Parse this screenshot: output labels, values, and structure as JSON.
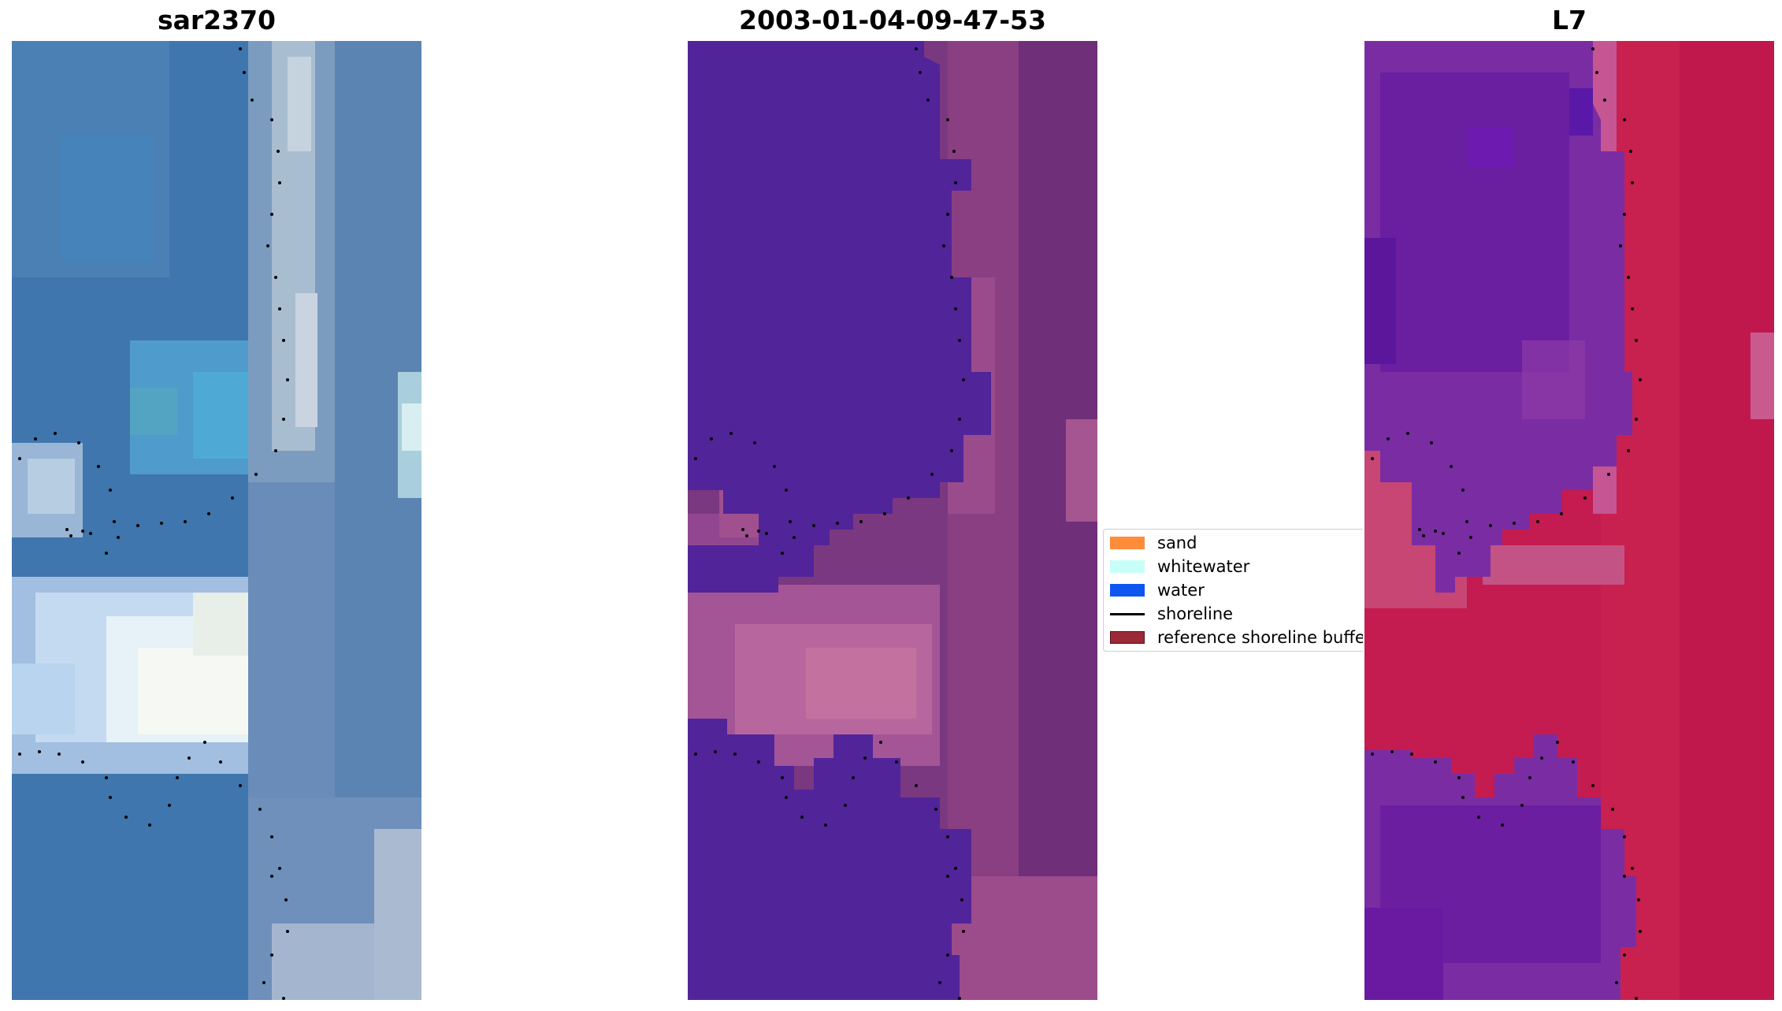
{
  "panels": {
    "rgb": {
      "title": "sar2370",
      "image": "RGB satellite image with dotted shoreline overlay"
    },
    "classified": {
      "title": "2003-01-04-09-47-53",
      "image": "classified image with dotted shoreline overlay"
    },
    "index": {
      "title": "L7",
      "image": "water index image with dotted shoreline overlay"
    }
  },
  "legend": {
    "items": [
      {
        "label": "sand",
        "color": "#ff8c3b",
        "kind": "patch"
      },
      {
        "label": "whitewater",
        "color": "#c8fff8",
        "kind": "patch"
      },
      {
        "label": "water",
        "color": "#0f56f0",
        "kind": "patch"
      },
      {
        "label": "shoreline",
        "color": "#000000",
        "kind": "line"
      },
      {
        "label": "reference shoreline buffer",
        "color": "#9b2a36",
        "kind": "patch"
      }
    ]
  },
  "colors": {
    "water_class": "#52249a",
    "rgb_water": "#3f78b0",
    "index_land": "#c41c50",
    "index_water": "#6a1ea0"
  }
}
